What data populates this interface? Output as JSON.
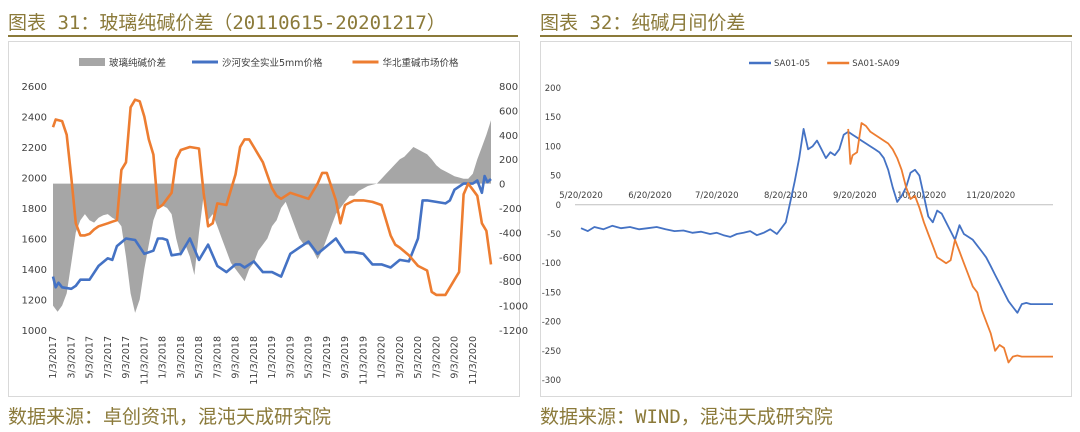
{
  "figures": [
    {
      "title": "图表 31：玻璃纯碱价差（20110615-20201217）",
      "source": "数据来源：卓创资讯，混沌天成研究院",
      "chart_data": {
        "type": "line",
        "legend": [
          {
            "name": "玻璃纯碱价差",
            "color": "#a6a6a6",
            "kind": "area"
          },
          {
            "name": "沙河安全实业5mm价格",
            "color": "#4472c4",
            "kind": "line"
          },
          {
            "name": "华北重碱市场价格",
            "color": "#ed7d31",
            "kind": "line"
          }
        ],
        "legend_position": "top",
        "y_left": {
          "min": 1000,
          "max": 2600,
          "step": 200,
          "ticks": [
            "1000",
            "1200",
            "1400",
            "1600",
            "1800",
            "2000",
            "2200",
            "2400",
            "2600"
          ]
        },
        "y_right": {
          "min": -1200,
          "max": 800,
          "step": 200,
          "ticks": [
            "-1200",
            "-1000",
            "-800",
            "-600",
            "-400",
            "-200",
            "0",
            "200",
            "400",
            "600",
            "800"
          ]
        },
        "x_ticks": [
          "1/3/2017",
          "3/3/2017",
          "5/3/2017",
          "7/3/2017",
          "9/3/2017",
          "11/3/2017",
          "1/3/2018",
          "3/3/2018",
          "5/3/2018",
          "7/3/2018",
          "9/3/2018",
          "11/3/2018",
          "1/3/2019",
          "3/3/2019",
          "5/3/2019",
          "7/3/2019",
          "9/3/2019",
          "11/3/2019",
          "1/3/2020",
          "3/3/2020",
          "5/3/2020",
          "7/3/2020",
          "9/3/2020",
          "11/3/2020"
        ],
        "x_range": [
          0,
          48
        ],
        "series": [
          {
            "name": "沙河安全实业5mm价格",
            "axis": "left",
            "x": [
              0,
              0.3,
              0.6,
              1,
              2,
              2.5,
              3,
              3.5,
              4,
              5,
              6,
              6.5,
              7,
              8,
              9,
              10,
              11,
              11.5,
              12,
              12.5,
              13,
              14,
              15,
              16,
              16.5,
              17,
              18,
              19,
              20,
              20.5,
              21,
              22,
              23,
              24,
              25,
              26,
              27,
              28,
              29,
              30,
              31,
              32,
              33,
              34,
              35,
              36,
              37,
              38,
              39,
              40,
              40.5,
              41,
              42,
              43,
              43.5,
              44,
              45,
              46,
              46.5,
              47,
              47.3,
              47.6,
              48
            ],
            "y": [
              1350,
              1280,
              1310,
              1280,
              1270,
              1290,
              1330,
              1330,
              1330,
              1420,
              1470,
              1460,
              1550,
              1600,
              1590,
              1500,
              1520,
              1600,
              1600,
              1590,
              1490,
              1500,
              1600,
              1460,
              1510,
              1560,
              1420,
              1380,
              1430,
              1430,
              1410,
              1450,
              1380,
              1380,
              1350,
              1500,
              1540,
              1580,
              1500,
              1550,
              1600,
              1510,
              1510,
              1500,
              1430,
              1430,
              1410,
              1460,
              1450,
              1600,
              1850,
              1850,
              1840,
              1830,
              1850,
              1920,
              1960,
              1960,
              1980,
              1900,
              2010,
              1970,
              1990
            ]
          },
          {
            "name": "华北重碱市场价格",
            "axis": "left",
            "x": [
              0,
              0.3,
              1,
              1.5,
              2,
              2.5,
              3,
              3.5,
              4,
              4.5,
              5,
              6,
              6.5,
              7,
              7.5,
              8,
              8.5,
              9,
              9.5,
              10,
              10.5,
              11,
              11.5,
              12,
              12.5,
              13,
              13.5,
              14,
              15,
              16,
              16.5,
              17,
              17.5,
              18,
              19,
              20,
              20.5,
              21,
              21.5,
              22,
              23,
              24,
              24.5,
              25,
              26,
              27,
              28,
              29,
              29.5,
              30,
              31,
              31.5,
              32,
              33,
              34,
              35,
              36,
              36.5,
              37,
              37.5,
              38,
              39,
              40,
              41,
              41.5,
              42,
              43,
              44,
              44.5,
              45,
              45.5,
              46,
              46.5,
              47,
              47.5,
              48
            ],
            "y": [
              2330,
              2380,
              2370,
              2280,
              2000,
              1700,
              1620,
              1620,
              1630,
              1660,
              1680,
              1700,
              1710,
              1720,
              2050,
              2100,
              2460,
              2510,
              2500,
              2400,
              2250,
              2150,
              1800,
              1820,
              1860,
              1900,
              2120,
              2180,
              2200,
              2190,
              1900,
              1680,
              1700,
              1830,
              1820,
              2020,
              2200,
              2250,
              2250,
              2200,
              2100,
              1930,
              1880,
              1860,
              1900,
              1880,
              1860,
              1960,
              2030,
              2030,
              1850,
              1700,
              1820,
              1850,
              1850,
              1840,
              1820,
              1720,
              1620,
              1560,
              1540,
              1490,
              1420,
              1390,
              1250,
              1230,
              1230,
              1330,
              1380,
              1890,
              1960,
              1920,
              1880,
              1700,
              1650,
              1430
            ]
          },
          {
            "name": "玻璃纯碱价差",
            "axis": "right",
            "kind": "area",
            "x": [
              0,
              0.5,
              1,
              1.5,
              2,
              2.5,
              3,
              3.5,
              4,
              4.5,
              5,
              5.5,
              6,
              6.5,
              7,
              7.5,
              8,
              8.5,
              9,
              9.5,
              10,
              10.5,
              11,
              11.5,
              12,
              12.5,
              13,
              13.5,
              14,
              14.5,
              15,
              15.5,
              16,
              16.5,
              17,
              17.5,
              18,
              18.5,
              19,
              19.5,
              20,
              20.5,
              21,
              21.5,
              22,
              22.5,
              23,
              23.5,
              24,
              24.5,
              25,
              25.5,
              26,
              26.5,
              27,
              27.5,
              28,
              28.5,
              29,
              29.5,
              30,
              30.5,
              31,
              31.5,
              32,
              32.5,
              33,
              33.5,
              34,
              34.5,
              35,
              35.5,
              36,
              36.5,
              37,
              37.5,
              38,
              38.5,
              39,
              39.5,
              40,
              40.5,
              41,
              41.5,
              42,
              42.5,
              43,
              43.5,
              44,
              44.5,
              45,
              45.5,
              46,
              46.5,
              47,
              47.5,
              48
            ],
            "y": [
              -1000,
              -1050,
              -1000,
              -900,
              -650,
              -400,
              -300,
              -250,
              -300,
              -320,
              -280,
              -260,
              -250,
              -280,
              -300,
              -350,
              -600,
              -900,
              -1060,
              -950,
              -700,
              -500,
              -300,
              -200,
              -180,
              -200,
              -250,
              -450,
              -600,
              -500,
              -600,
              -750,
              -400,
              -100,
              -300,
              -250,
              -350,
              -450,
              -550,
              -650,
              -700,
              -750,
              -800,
              -700,
              -650,
              -550,
              -500,
              -450,
              -350,
              -300,
              -200,
              -150,
              -250,
              -350,
              -450,
              -500,
              -500,
              -550,
              -620,
              -550,
              -450,
              -350,
              -250,
              -200,
              -150,
              -100,
              -100,
              -60,
              -40,
              -20,
              -10,
              0,
              40,
              80,
              120,
              160,
              200,
              220,
              260,
              300,
              280,
              260,
              240,
              200,
              150,
              120,
              100,
              80,
              60,
              50,
              40,
              40,
              80,
              200,
              300,
              400,
              520
            ]
          }
        ]
      }
    },
    {
      "title": "图表 32：纯碱月间价差",
      "source": "数据来源：WIND，混沌天成研究院",
      "chart_data": {
        "type": "line",
        "legend": [
          {
            "name": "SA01-05",
            "color": "#4472c4"
          },
          {
            "name": "SA01-SA09",
            "color": "#ed7d31"
          }
        ],
        "legend_position": "top",
        "y_range": [
          -300,
          200
        ],
        "y_ticks": [
          "-300",
          "-250",
          "-200",
          "-150",
          "-100",
          "-50",
          "0",
          "50",
          "100",
          "150",
          "200"
        ],
        "x_ticks": [
          "5/20/2020",
          "6/20/2020",
          "7/20/2020",
          "8/20/2020",
          "9/20/2020",
          "10/20/2020",
          "11/20/2020"
        ],
        "x_tick_days": [
          0,
          31,
          61,
          92,
          123,
          153,
          184
        ],
        "x_range": [
          0,
          212
        ],
        "series": [
          {
            "name": "SA01-05",
            "x": [
              0,
              3,
              6,
              10,
              14,
              18,
              22,
              26,
              30,
              34,
              38,
              42,
              46,
              50,
              54,
              58,
              61,
              64,
              67,
              70,
              73,
              76,
              79,
              82,
              85,
              88,
              90,
              92,
              94,
              96,
              98,
              100,
              102,
              104,
              106,
              108,
              110,
              112,
              114,
              116,
              118,
              120,
              122,
              124,
              126,
              128,
              130,
              132,
              134,
              136,
              138,
              140,
              142,
              144,
              146,
              148,
              150,
              152,
              154,
              156,
              158,
              160,
              162,
              164,
              166,
              168,
              170,
              172,
              174,
              176,
              178,
              180,
              182,
              184,
              186,
              188,
              190,
              192,
              194,
              196,
              198,
              200,
              202,
              204,
              206,
              208,
              210,
              212
            ],
            "y": [
              -40,
              -45,
              -38,
              -42,
              -36,
              -40,
              -38,
              -42,
              -40,
              -38,
              -42,
              -45,
              -44,
              -48,
              -46,
              -50,
              -48,
              -52,
              -55,
              -50,
              -48,
              -45,
              -52,
              -48,
              -42,
              -50,
              -40,
              -30,
              5,
              40,
              80,
              130,
              95,
              100,
              110,
              95,
              80,
              90,
              85,
              95,
              120,
              125,
              120,
              115,
              110,
              105,
              100,
              95,
              90,
              80,
              60,
              30,
              5,
              15,
              30,
              55,
              60,
              50,
              15,
              -20,
              -30,
              -10,
              -15,
              -30,
              -45,
              -60,
              -35,
              -50,
              -55,
              -60,
              -70,
              -80,
              -90,
              -105,
              -120,
              -135,
              -150,
              -165,
              -175,
              -185,
              -170,
              -168,
              -170,
              -170,
              -170,
              -170,
              -170,
              -170
            ]
          },
          {
            "name": "SA01-SA09",
            "x": [
              120,
              121,
              122,
              124,
              126,
              128,
              130,
              132,
              134,
              136,
              138,
              140,
              142,
              144,
              146,
              148,
              150,
              152,
              154,
              156,
              158,
              160,
              162,
              164,
              166,
              168,
              170,
              172,
              174,
              176,
              178,
              180,
              182,
              184,
              186,
              188,
              190,
              192,
              194,
              196,
              198,
              200,
              202,
              204,
              206,
              208,
              210,
              212
            ],
            "y": [
              130,
              70,
              85,
              90,
              140,
              135,
              125,
              120,
              115,
              110,
              105,
              95,
              80,
              60,
              30,
              10,
              15,
              -5,
              -30,
              -50,
              -70,
              -90,
              -95,
              -100,
              -95,
              -60,
              -80,
              -100,
              -120,
              -140,
              -150,
              -180,
              -200,
              -220,
              -250,
              -240,
              -245,
              -270,
              -260,
              -258,
              -260,
              -260,
              -260,
              -260,
              -260,
              -260,
              -260,
              -260
            ]
          }
        ]
      }
    }
  ]
}
